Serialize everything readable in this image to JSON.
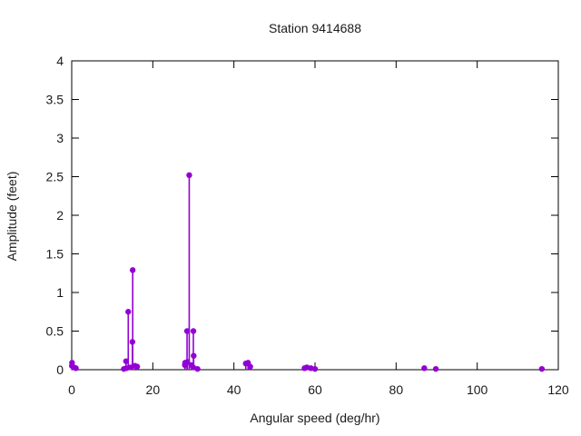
{
  "chart_data": {
    "type": "scatter",
    "style": "impulses-plus-points",
    "title": "Station 9414688",
    "xlabel": "Angular speed (deg/hr)",
    "ylabel": "Amplitude (feet)",
    "xlim": [
      0,
      120
    ],
    "ylim": [
      0,
      4
    ],
    "xticks": [
      0,
      20,
      40,
      60,
      80,
      100,
      120
    ],
    "yticks": [
      0,
      0.5,
      1,
      1.5,
      2,
      2.5,
      3,
      3.5,
      4
    ],
    "grid": false,
    "legend": "none",
    "point_color": "#9400D3",
    "axis_color": "#000000",
    "text_color": "#1a1a1a",
    "points": [
      [
        0.04,
        0.05
      ],
      [
        0.08,
        0.09
      ],
      [
        0.54,
        0.03
      ],
      [
        1.02,
        0.02
      ],
      [
        12.85,
        0.01
      ],
      [
        13.4,
        0.11
      ],
      [
        13.47,
        0.02
      ],
      [
        13.94,
        0.75
      ],
      [
        14.49,
        0.03
      ],
      [
        14.96,
        0.36
      ],
      [
        15.04,
        1.29
      ],
      [
        15.58,
        0.05
      ],
      [
        16.14,
        0.04
      ],
      [
        27.9,
        0.06
      ],
      [
        27.97,
        0.09
      ],
      [
        28.44,
        0.5
      ],
      [
        28.51,
        0.1
      ],
      [
        28.98,
        2.52
      ],
      [
        29.53,
        0.06
      ],
      [
        29.96,
        0.03
      ],
      [
        30.0,
        0.5
      ],
      [
        30.08,
        0.18
      ],
      [
        31.02,
        0.01
      ],
      [
        42.93,
        0.08
      ],
      [
        43.48,
        0.09
      ],
      [
        44.02,
        0.04
      ],
      [
        57.42,
        0.02
      ],
      [
        57.97,
        0.03
      ],
      [
        58.98,
        0.02
      ],
      [
        60.0,
        0.01
      ],
      [
        86.95,
        0.02
      ],
      [
        89.8,
        0.01
      ],
      [
        115.94,
        0.01
      ]
    ]
  }
}
